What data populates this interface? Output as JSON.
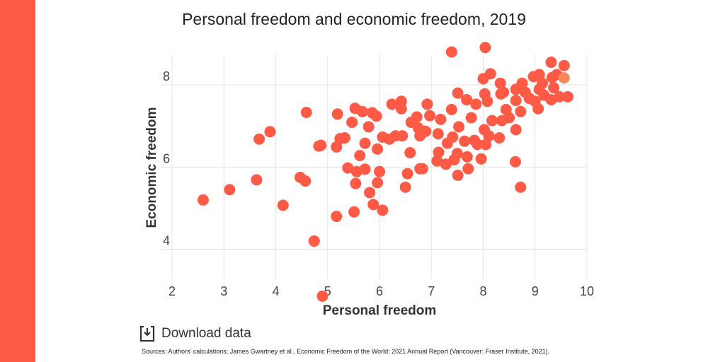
{
  "colors": {
    "sidebar": "#ff5a45",
    "point": "#ff5a45",
    "highlight": "#f5895c",
    "grid": "#e3e3e3"
  },
  "download": {
    "label": "Download data",
    "icon": "download-icon"
  },
  "source": "Sources: Authors’ calculations; James Gwartney et al., Economic Freedom of the World: 2021 Annual Report (Vancouver: Fraser Institute, 2021).",
  "chart_data": {
    "type": "scatter",
    "title": "Personal freedom and economic freedom, 2019",
    "xlabel": "Personal freedom",
    "ylabel": "Economic freedom",
    "xlim": [
      2,
      10
    ],
    "ylim": [
      3.27,
      8.74
    ],
    "xticks": [
      2,
      3,
      4,
      5,
      6,
      7,
      8,
      9,
      10
    ],
    "yticks": [
      4,
      6,
      8
    ],
    "grid": true,
    "points": [
      [
        2.6,
        5.2
      ],
      [
        3.11,
        5.45
      ],
      [
        3.63,
        5.69
      ],
      [
        3.68,
        6.68
      ],
      [
        3.89,
        6.86
      ],
      [
        4.14,
        5.07
      ],
      [
        4.47,
        5.75
      ],
      [
        4.57,
        5.66
      ],
      [
        4.59,
        7.33
      ],
      [
        4.74,
        4.2
      ],
      [
        4.9,
        2.86
      ],
      [
        4.83,
        6.51
      ],
      [
        4.87,
        6.53
      ],
      [
        5.17,
        4.8
      ],
      [
        5.19,
        7.29
      ],
      [
        5.17,
        6.49
      ],
      [
        5.24,
        6.69
      ],
      [
        5.33,
        6.71
      ],
      [
        5.39,
        5.98
      ],
      [
        5.47,
        7.09
      ],
      [
        5.51,
        4.91
      ],
      [
        5.53,
        7.43
      ],
      [
        5.54,
        5.6
      ],
      [
        5.56,
        5.89
      ],
      [
        5.62,
        6.28
      ],
      [
        5.67,
        7.35
      ],
      [
        5.72,
        5.95
      ],
      [
        5.72,
        6.58
      ],
      [
        5.79,
        6.98
      ],
      [
        5.81,
        5.38
      ],
      [
        5.86,
        7.32
      ],
      [
        5.88,
        5.09
      ],
      [
        5.94,
        7.24
      ],
      [
        5.96,
        6.44
      ],
      [
        5.96,
        5.62
      ],
      [
        6.0,
        5.89
      ],
      [
        6.06,
        4.95
      ],
      [
        6.06,
        6.73
      ],
      [
        6.19,
        6.68
      ],
      [
        6.24,
        7.53
      ],
      [
        6.31,
        6.76
      ],
      [
        6.42,
        7.6
      ],
      [
        6.42,
        7.42
      ],
      [
        6.44,
        6.76
      ],
      [
        6.5,
        5.51
      ],
      [
        6.54,
        5.84
      ],
      [
        6.59,
        6.35
      ],
      [
        6.61,
        7.09
      ],
      [
        6.72,
        7.22
      ],
      [
        6.75,
        6.95
      ],
      [
        6.78,
        6.76
      ],
      [
        6.78,
        5.96
      ],
      [
        6.83,
        5.96
      ],
      [
        6.89,
        6.87
      ],
      [
        6.92,
        7.53
      ],
      [
        6.97,
        7.25
      ],
      [
        7.13,
        6.81
      ],
      [
        7.14,
        6.36
      ],
      [
        7.11,
        6.15
      ],
      [
        7.18,
        7.16
      ],
      [
        7.28,
        6.07
      ],
      [
        7.31,
        6.58
      ],
      [
        7.39,
        8.8
      ],
      [
        7.39,
        7.4
      ],
      [
        7.41,
        6.73
      ],
      [
        7.44,
        6.18
      ],
      [
        7.5,
        6.33
      ],
      [
        7.51,
        7.8
      ],
      [
        7.51,
        5.8
      ],
      [
        7.53,
        6.98
      ],
      [
        7.64,
        6.63
      ],
      [
        7.68,
        7.64
      ],
      [
        7.69,
        6.25
      ],
      [
        7.71,
        5.96
      ],
      [
        7.77,
        7.2
      ],
      [
        7.83,
        6.65
      ],
      [
        7.86,
        7.53
      ],
      [
        7.89,
        6.55
      ],
      [
        7.96,
        6.2
      ],
      [
        8.0,
        8.15
      ],
      [
        8.03,
        7.78
      ],
      [
        8.04,
        8.91
      ],
      [
        8.05,
        6.55
      ],
      [
        8.02,
        6.91
      ],
      [
        8.08,
        7.6
      ],
      [
        8.14,
        8.27
      ],
      [
        8.17,
        7.13
      ],
      [
        8.11,
        6.76
      ],
      [
        8.31,
        6.71
      ],
      [
        8.33,
        8.04
      ],
      [
        8.34,
        7.78
      ],
      [
        8.39,
        7.82
      ],
      [
        8.36,
        7.13
      ],
      [
        8.44,
        7.4
      ],
      [
        8.5,
        7.2
      ],
      [
        8.62,
        6.13
      ],
      [
        8.63,
        6.91
      ],
      [
        8.63,
        7.89
      ],
      [
        8.63,
        7.62
      ],
      [
        8.72,
        5.51
      ],
      [
        8.72,
        7.35
      ],
      [
        8.75,
        8.04
      ],
      [
        8.81,
        7.82
      ],
      [
        8.89,
        7.67
      ],
      [
        8.97,
        8.2
      ],
      [
        9.0,
        7.6
      ],
      [
        9.06,
        7.42
      ],
      [
        9.08,
        8.25
      ],
      [
        9.08,
        7.89
      ],
      [
        9.14,
        8.04
      ],
      [
        9.17,
        7.75
      ],
      [
        9.31,
        8.55
      ],
      [
        9.31,
        7.64
      ],
      [
        9.33,
        8.18
      ],
      [
        9.36,
        7.93
      ],
      [
        9.42,
        8.25
      ],
      [
        9.47,
        7.71
      ],
      [
        9.56,
        8.47
      ],
      [
        9.63,
        7.71
      ]
    ],
    "highlighted_point": [
      9.56,
      8.17
    ]
  }
}
